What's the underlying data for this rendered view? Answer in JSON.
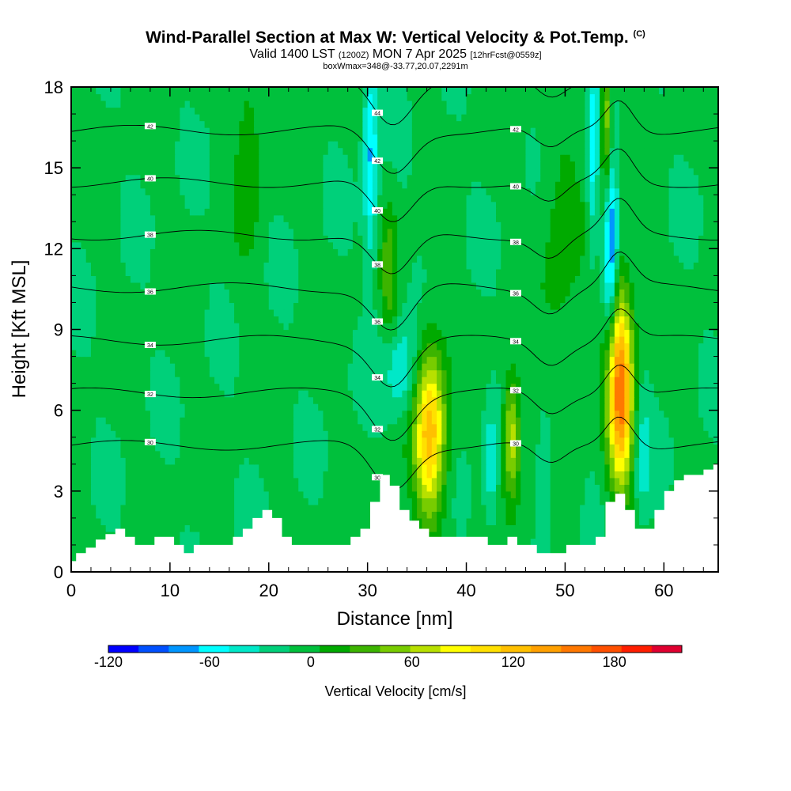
{
  "header": {
    "title_main": "Wind-Parallel Section at Max W: Vertical Velocity & Pot.Temp.",
    "title_mark": "(C)",
    "valid_prefix": "Valid 1400 LST",
    "valid_utc": "(1200Z)",
    "valid_date": "MON 7 Apr 2025",
    "forecast_info": "[12hrFcst@0559z]",
    "box_info": "boxWmax=348@-33.77,20.07,2291m"
  },
  "chart_data": {
    "type": "heatmap",
    "xlabel": "Distance [nm]",
    "ylabel": "Height [Kft MSL]",
    "xlim": [
      0,
      65.5
    ],
    "ylim": [
      0,
      18
    ],
    "x_ticks": [
      "0",
      "10",
      "20",
      "30",
      "40",
      "50",
      "60"
    ],
    "y_ticks": [
      "0",
      "3",
      "6",
      "9",
      "12",
      "15",
      "18"
    ],
    "colorbar": {
      "label": "Vertical Velocity [cm/s]",
      "range": [
        -120,
        220
      ],
      "step": 20,
      "tick_labels": [
        "-120",
        "-60",
        "0",
        "60",
        "120",
        "180"
      ],
      "colors": [
        "#0000ff",
        "#0050ff",
        "#0096ff",
        "#00ffff",
        "#00e8c8",
        "#00d07a",
        "#00c03c",
        "#00aa00",
        "#3cb400",
        "#78cc00",
        "#b8e000",
        "#ffff00",
        "#ffe000",
        "#ffc000",
        "#ffa000",
        "#ff7800",
        "#ff5000",
        "#ff1e00",
        "#e00030"
      ]
    },
    "theta_contours": {
      "label": "Potential temperature",
      "levels": [
        30,
        32,
        34,
        36,
        38,
        40,
        42,
        44,
        46
      ]
    },
    "terrain_heights_kft": [
      0.4,
      0.7,
      0.9,
      1.2,
      1.4,
      1.6,
      1.3,
      1.0,
      1.0,
      1.3,
      1.3,
      1.0,
      0.7,
      1.0,
      1.0,
      1.0,
      1.0,
      1.3,
      1.6,
      2.0,
      2.3,
      2.0,
      1.3,
      1.0,
      1.0,
      1.0,
      1.0,
      1.0,
      1.0,
      1.3,
      1.6,
      2.6,
      3.6,
      3.2,
      2.3,
      1.9,
      1.6,
      1.3,
      1.3,
      1.3,
      1.3,
      1.3,
      1.3,
      1.0,
      1.0,
      1.3,
      1.0,
      1.0,
      0.7,
      0.7,
      0.7,
      1.0,
      1.0,
      1.0,
      1.3,
      2.6,
      2.9,
      2.3,
      1.6,
      1.6,
      2.3,
      3.0,
      3.4,
      3.6,
      3.6,
      3.8,
      4.0
    ]
  }
}
